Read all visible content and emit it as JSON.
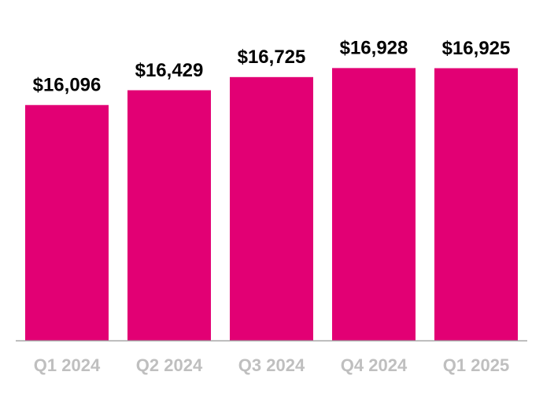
{
  "chart_data": {
    "type": "bar",
    "categories": [
      "Q1 2024",
      "Q2 2024",
      "Q3 2024",
      "Q4 2024",
      "Q1 2025"
    ],
    "values": [
      16096,
      16429,
      16725,
      16928,
      16925
    ],
    "value_labels": [
      "$16,096",
      "$16,429",
      "$16,725",
      "$16,928",
      "$16,925"
    ],
    "color": "#e20074",
    "ylim": [
      10800,
      17750
    ]
  }
}
